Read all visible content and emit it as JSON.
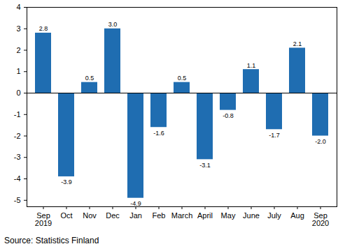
{
  "chart_data": {
    "type": "bar",
    "categories": [
      "Sep\n2019",
      "Oct",
      "Nov",
      "Dec",
      "Jan",
      "Feb",
      "March",
      "April",
      "May",
      "June",
      "July",
      "Aug",
      "Sep\n2020"
    ],
    "values": [
      2.8,
      -3.9,
      0.5,
      3.0,
      -4.9,
      -1.6,
      0.5,
      -3.1,
      -0.8,
      1.1,
      -1.7,
      2.1,
      -2.0
    ],
    "value_labels": [
      "2.8",
      "-3.9",
      "0.5",
      "3.0",
      "-4.9",
      "-1.6",
      "0.5",
      "-3.1",
      "-0.8",
      "1.1",
      "-1.7",
      "2.1",
      "-2.0"
    ],
    "color": "#1f6db1",
    "ylim": [
      -5.3,
      4
    ],
    "yticks": [
      -5,
      -4,
      -3,
      -2,
      -1,
      0,
      1,
      2,
      3,
      4
    ],
    "grid": false,
    "data_labels": true,
    "source": "Source: Statistics Finland"
  }
}
